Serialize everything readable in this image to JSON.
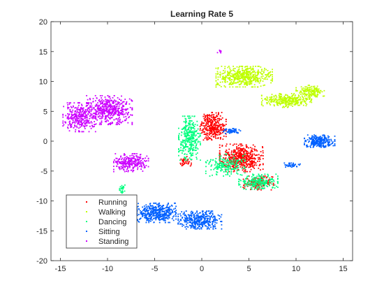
{
  "chart_data": {
    "type": "scatter",
    "title": "Learning Rate 5",
    "xlabel": "",
    "ylabel": "",
    "xlim": [
      -16,
      16
    ],
    "ylim": [
      -20,
      20
    ],
    "xticks": [
      -15,
      -10,
      -5,
      0,
      5,
      10,
      15
    ],
    "yticks": [
      -20,
      -15,
      -10,
      -5,
      0,
      5,
      10,
      15,
      20
    ],
    "grid": false,
    "legend_position": "bottom-left",
    "series": [
      {
        "name": "Running",
        "color": "#ff0000",
        "clusters": [
          {
            "center": [
              4.2,
              -2.8
            ],
            "spread": [
              2.0,
              2.0
            ],
            "count": 520
          },
          {
            "center": [
              1.2,
              2.5
            ],
            "spread": [
              1.2,
              2.0
            ],
            "count": 320
          },
          {
            "center": [
              6.0,
              -7.0
            ],
            "spread": [
              1.4,
              1.0
            ],
            "count": 160
          },
          {
            "center": [
              -1.8,
              -3.5
            ],
            "spread": [
              0.6,
              0.8
            ],
            "count": 40
          }
        ]
      },
      {
        "name": "Walking",
        "color": "#bfff00",
        "clusters": [
          {
            "center": [
              4.5,
              10.8
            ],
            "spread": [
              2.6,
              1.5
            ],
            "count": 520
          },
          {
            "center": [
              9.0,
              6.8
            ],
            "spread": [
              2.3,
              1.0
            ],
            "count": 300
          },
          {
            "center": [
              11.5,
              8.2
            ],
            "spread": [
              1.3,
              1.0
            ],
            "count": 150
          }
        ]
      },
      {
        "name": "Dancing",
        "color": "#00ff7f",
        "clusters": [
          {
            "center": [
              -1.3,
              0.5
            ],
            "spread": [
              1.0,
              3.2
            ],
            "count": 340
          },
          {
            "center": [
              6.0,
              -6.8
            ],
            "spread": [
              1.8,
              1.1
            ],
            "count": 220
          },
          {
            "center": [
              2.5,
              -4.0
            ],
            "spread": [
              1.8,
              1.6
            ],
            "count": 200
          },
          {
            "center": [
              -8.5,
              -8.0
            ],
            "spread": [
              0.3,
              0.6
            ],
            "count": 30
          }
        ]
      },
      {
        "name": "Sitting",
        "color": "#0060ff",
        "clusters": [
          {
            "center": [
              -4.8,
              -12.0
            ],
            "spread": [
              1.8,
              1.4
            ],
            "count": 420
          },
          {
            "center": [
              -0.2,
              -13.2
            ],
            "spread": [
              2.0,
              1.3
            ],
            "count": 380
          },
          {
            "center": [
              12.5,
              0.0
            ],
            "spread": [
              1.4,
              0.9
            ],
            "count": 260
          },
          {
            "center": [
              3.2,
              1.7
            ],
            "spread": [
              0.8,
              0.35
            ],
            "count": 60
          },
          {
            "center": [
              9.4,
              -4.0
            ],
            "spread": [
              0.9,
              0.3
            ],
            "count": 40
          }
        ]
      },
      {
        "name": "Standing",
        "color": "#cc00ff",
        "clusters": [
          {
            "center": [
              -13.0,
              4.0
            ],
            "spread": [
              1.5,
              2.1
            ],
            "count": 320
          },
          {
            "center": [
              -9.8,
              5.2
            ],
            "spread": [
              2.1,
              2.1
            ],
            "count": 480
          },
          {
            "center": [
              -7.5,
              -3.6
            ],
            "spread": [
              1.6,
              1.3
            ],
            "count": 260
          },
          {
            "center": [
              1.9,
              15.0
            ],
            "spread": [
              0.2,
              0.2
            ],
            "count": 8
          }
        ]
      }
    ]
  }
}
